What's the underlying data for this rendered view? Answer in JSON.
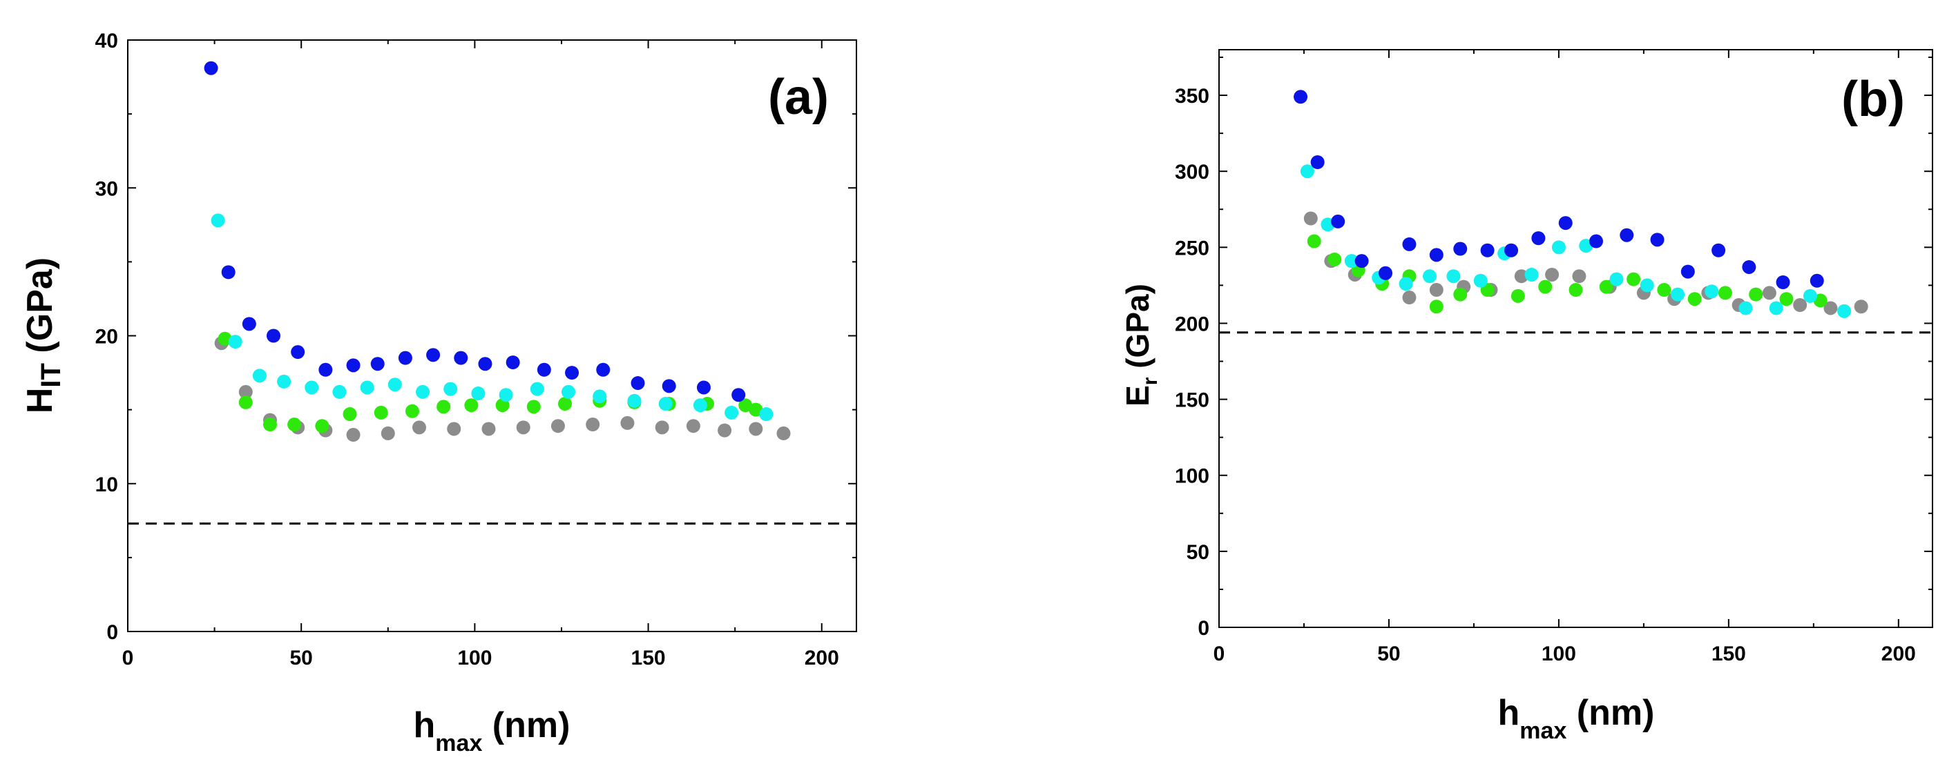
{
  "chart_data": [
    {
      "type": "scatter",
      "panel_label": "(a)",
      "xlabel": {
        "main": "h",
        "sub": "max",
        "unit": " (nm)"
      },
      "ylabel": {
        "main": "H",
        "sub": "IT",
        "unit": " (GPa)"
      },
      "xlim": [
        0,
        210
      ],
      "ylim": [
        0,
        40
      ],
      "xticks": [
        "0",
        "50",
        "100",
        "150",
        "200"
      ],
      "yticks": [
        "0",
        "10",
        "20",
        "30",
        "40"
      ],
      "reference_line": {
        "y": 7.3,
        "style": "dashed"
      },
      "series": [
        {
          "name": "blue",
          "color": "#0a14e6",
          "points": [
            [
              24,
              38.1
            ],
            [
              29,
              24.3
            ],
            [
              35,
              20.8
            ],
            [
              42,
              20.0
            ],
            [
              49,
              18.9
            ],
            [
              57,
              17.7
            ],
            [
              65,
              18.0
            ],
            [
              72,
              18.1
            ],
            [
              80,
              18.5
            ],
            [
              88,
              18.7
            ],
            [
              96,
              18.5
            ],
            [
              103,
              18.1
            ],
            [
              111,
              18.2
            ],
            [
              120,
              17.7
            ],
            [
              128,
              17.5
            ],
            [
              137,
              17.7
            ],
            [
              147,
              16.8
            ],
            [
              156,
              16.6
            ],
            [
              166,
              16.5
            ],
            [
              176,
              16.0
            ]
          ]
        },
        {
          "name": "cyan",
          "color": "#12f0f0",
          "points": [
            [
              26,
              27.8
            ],
            [
              31,
              19.6
            ],
            [
              38,
              17.3
            ],
            [
              45,
              16.9
            ],
            [
              53,
              16.5
            ],
            [
              61,
              16.2
            ],
            [
              69,
              16.5
            ],
            [
              77,
              16.7
            ],
            [
              85,
              16.2
            ],
            [
              93,
              16.4
            ],
            [
              101,
              16.1
            ],
            [
              109,
              16.0
            ],
            [
              118,
              16.4
            ],
            [
              127,
              16.2
            ],
            [
              136,
              15.9
            ],
            [
              146,
              15.6
            ],
            [
              155,
              15.4
            ],
            [
              165,
              15.3
            ],
            [
              174,
              14.8
            ],
            [
              184,
              14.7
            ]
          ]
        },
        {
          "name": "green",
          "color": "#2ee80c",
          "points": [
            [
              28,
              19.8
            ],
            [
              34,
              15.5
            ],
            [
              41,
              14.0
            ],
            [
              48,
              14.0
            ],
            [
              56,
              13.9
            ],
            [
              64,
              14.7
            ],
            [
              73,
              14.8
            ],
            [
              82,
              14.9
            ],
            [
              91,
              15.2
            ],
            [
              99,
              15.3
            ],
            [
              108,
              15.3
            ],
            [
              117,
              15.2
            ],
            [
              126,
              15.4
            ],
            [
              136,
              15.6
            ],
            [
              146,
              15.5
            ],
            [
              156,
              15.4
            ],
            [
              167,
              15.4
            ],
            [
              178,
              15.3
            ],
            [
              181,
              15.0
            ]
          ]
        },
        {
          "name": "gray",
          "color": "#8c8c8c",
          "points": [
            [
              27,
              19.5
            ],
            [
              34,
              16.2
            ],
            [
              41,
              14.3
            ],
            [
              49,
              13.8
            ],
            [
              57,
              13.6
            ],
            [
              65,
              13.3
            ],
            [
              75,
              13.4
            ],
            [
              84,
              13.8
            ],
            [
              94,
              13.7
            ],
            [
              104,
              13.7
            ],
            [
              114,
              13.8
            ],
            [
              124,
              13.9
            ],
            [
              134,
              14.0
            ],
            [
              144,
              14.1
            ],
            [
              154,
              13.8
            ],
            [
              163,
              13.9
            ],
            [
              172,
              13.6
            ],
            [
              181,
              13.7
            ],
            [
              189,
              13.4
            ]
          ]
        }
      ]
    },
    {
      "type": "scatter",
      "panel_label": "(b)",
      "xlabel": {
        "main": "h",
        "sub": "max",
        "unit": " (nm)"
      },
      "ylabel": {
        "main": "E",
        "sub": "r",
        "unit": " (GPa)"
      },
      "xlim": [
        0,
        210
      ],
      "ylim": [
        0,
        380
      ],
      "xticks": [
        "0",
        "50",
        "100",
        "150",
        "200"
      ],
      "yticks": [
        "0",
        "50",
        "100",
        "150",
        "200",
        "250",
        "300",
        "350"
      ],
      "reference_line": {
        "y": 194,
        "style": "dashed"
      },
      "series": [
        {
          "name": "blue",
          "color": "#0a14e6",
          "points": [
            [
              24,
              349
            ],
            [
              29,
              306
            ],
            [
              35,
              267
            ],
            [
              42,
              241
            ],
            [
              49,
              233
            ],
            [
              56,
              252
            ],
            [
              64,
              245
            ],
            [
              71,
              249
            ],
            [
              79,
              248
            ],
            [
              86,
              248
            ],
            [
              94,
              256
            ],
            [
              102,
              266
            ],
            [
              111,
              254
            ],
            [
              120,
              258
            ],
            [
              129,
              255
            ],
            [
              138,
              234
            ],
            [
              147,
              248
            ],
            [
              156,
              237
            ],
            [
              166,
              227
            ],
            [
              176,
              228
            ]
          ]
        },
        {
          "name": "cyan",
          "color": "#12f0f0",
          "points": [
            [
              26,
              300
            ],
            [
              32,
              265
            ],
            [
              39,
              241
            ],
            [
              47,
              230
            ],
            [
              55,
              226
            ],
            [
              62,
              231
            ],
            [
              69,
              231
            ],
            [
              77,
              228
            ],
            [
              84,
              246
            ],
            [
              92,
              232
            ],
            [
              100,
              250
            ],
            [
              108,
              251
            ],
            [
              117,
              229
            ],
            [
              126,
              225
            ],
            [
              135,
              219
            ],
            [
              145,
              221
            ],
            [
              155,
              210
            ],
            [
              164,
              210
            ],
            [
              174,
              218
            ],
            [
              184,
              208
            ]
          ]
        },
        {
          "name": "green",
          "color": "#2ee80c",
          "points": [
            [
              28,
              254
            ],
            [
              34,
              242
            ],
            [
              41,
              235
            ],
            [
              48,
              226
            ],
            [
              56,
              231
            ],
            [
              64,
              211
            ],
            [
              71,
              219
            ],
            [
              79,
              222
            ],
            [
              88,
              218
            ],
            [
              96,
              224
            ],
            [
              105,
              222
            ],
            [
              114,
              224
            ],
            [
              122,
              229
            ],
            [
              131,
              222
            ],
            [
              140,
              216
            ],
            [
              149,
              220
            ],
            [
              158,
              219
            ],
            [
              167,
              216
            ],
            [
              177,
              215
            ]
          ]
        },
        {
          "name": "gray",
          "color": "#8c8c8c",
          "points": [
            [
              27,
              269
            ],
            [
              33,
              241
            ],
            [
              40,
              232
            ],
            [
              48,
              230
            ],
            [
              56,
              217
            ],
            [
              64,
              222
            ],
            [
              72,
              224
            ],
            [
              80,
              222
            ],
            [
              89,
              231
            ],
            [
              98,
              232
            ],
            [
              106,
              231
            ],
            [
              115,
              224
            ],
            [
              125,
              220
            ],
            [
              134,
              216
            ],
            [
              144,
              220
            ],
            [
              153,
              212
            ],
            [
              162,
              220
            ],
            [
              171,
              212
            ],
            [
              180,
              210
            ],
            [
              189,
              211
            ]
          ]
        }
      ]
    }
  ]
}
